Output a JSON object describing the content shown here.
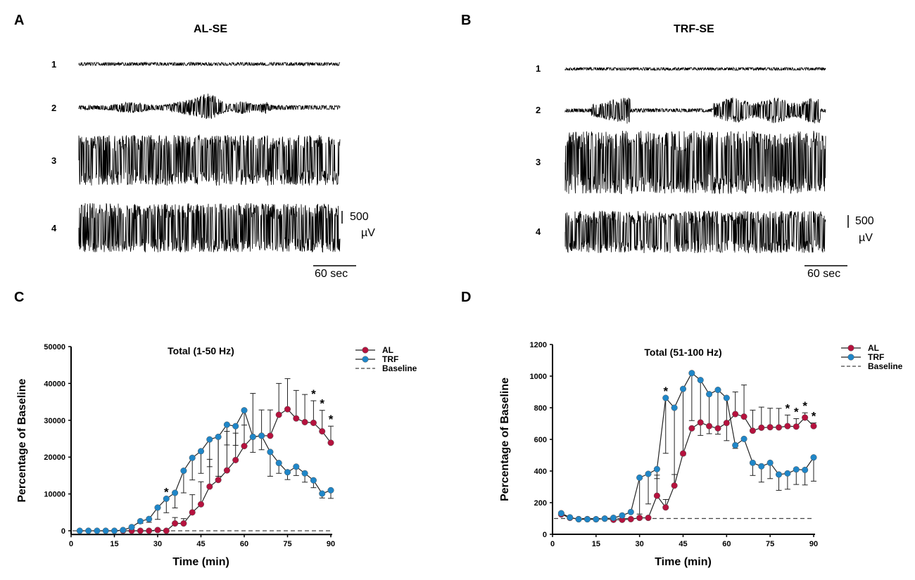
{
  "panels": {
    "A": {
      "letter": "A",
      "title": "AL-SE",
      "traces": [
        "1",
        "2",
        "3",
        "4"
      ],
      "scale_value": "500",
      "scale_unit": "µV",
      "time_scale": "60 sec"
    },
    "B": {
      "letter": "B",
      "title": "TRF-SE",
      "traces": [
        "1",
        "2",
        "3",
        "4"
      ],
      "scale_value": "500",
      "scale_unit": "µV",
      "time_scale": "60 sec"
    },
    "C": {
      "letter": "C"
    },
    "D": {
      "letter": "D"
    }
  },
  "colors": {
    "AL": "#b5123e",
    "TRF": "#1f86c8",
    "line": "#222222"
  },
  "chart_data": [
    {
      "type": "line",
      "title": "Total (1-50 Hz)",
      "xlabel": "Time (min)",
      "ylabel": "Percentage of Baseline",
      "xlim": [
        0,
        90
      ],
      "ylim": [
        -1000,
        50000
      ],
      "xticks": [
        0,
        15,
        30,
        45,
        60,
        75,
        90
      ],
      "yticks": [
        0,
        10000,
        20000,
        30000,
        40000,
        50000
      ],
      "legend_position": "top-right",
      "legend": [
        "AL",
        "TRF",
        "Baseline"
      ],
      "baseline": 0,
      "x": [
        3,
        6,
        9,
        12,
        15,
        18,
        21,
        24,
        27,
        30,
        33,
        36,
        39,
        42,
        45,
        48,
        51,
        54,
        57,
        60,
        63,
        66,
        69,
        72,
        75,
        78,
        81,
        84,
        87,
        90
      ],
      "series": [
        {
          "name": "AL",
          "error_direction": "up",
          "values": [
            null,
            null,
            null,
            null,
            null,
            0,
            0,
            0,
            0,
            200,
            0,
            2000,
            2000,
            5000,
            7200,
            12000,
            13800,
            16400,
            19200,
            23000,
            25500,
            25800,
            25800,
            31500,
            33000,
            30500,
            29500,
            29300,
            27000,
            23900
          ],
          "error": [
            0,
            0,
            0,
            0,
            0,
            0,
            0,
            0,
            0,
            0,
            0,
            1600,
            1300,
            4800,
            6100,
            7400,
            11700,
            10600,
            7300,
            9700,
            11800,
            7000,
            7000,
            8500,
            8300,
            7600,
            7500,
            6000,
            5700,
            4500
          ]
        },
        {
          "name": "TRF",
          "error_direction": "down",
          "values": [
            0,
            0,
            0,
            0,
            0,
            200,
            1000,
            2600,
            3200,
            6300,
            8700,
            10300,
            16300,
            19800,
            21600,
            24800,
            25500,
            28800,
            28400,
            32700,
            25500,
            25800,
            21400,
            18400,
            15900,
            17400,
            15600,
            13700,
            10100,
            11000
          ],
          "error": [
            0,
            0,
            0,
            0,
            0,
            0,
            300,
            600,
            900,
            3200,
            3800,
            4100,
            6000,
            6000,
            6000,
            7400,
            10700,
            5500,
            5200,
            4000,
            4200,
            3800,
            6600,
            2800,
            2000,
            2400,
            2400,
            2000,
            1200,
            2200
          ]
        }
      ],
      "significance_marks": [
        {
          "x": 33,
          "label": "*"
        },
        {
          "x": 84,
          "label": "*"
        },
        {
          "x": 87,
          "label": "*"
        },
        {
          "x": 90,
          "label": "*"
        }
      ]
    },
    {
      "type": "line",
      "title": "Total (51-100 Hz)",
      "xlabel": "Time (min)",
      "ylabel": "Percentage of Baseline",
      "xlim": [
        0,
        90
      ],
      "ylim": [
        0,
        1200
      ],
      "xticks": [
        0,
        15,
        30,
        45,
        60,
        75,
        90
      ],
      "yticks": [
        0,
        200,
        400,
        600,
        800,
        1000,
        1200
      ],
      "legend_position": "top-right",
      "legend": [
        "AL",
        "TRF",
        "Baseline"
      ],
      "baseline": 100,
      "x": [
        3,
        6,
        9,
        12,
        15,
        18,
        21,
        24,
        27,
        30,
        33,
        36,
        39,
        42,
        45,
        48,
        51,
        54,
        57,
        60,
        63,
        66,
        69,
        72,
        75,
        78,
        81,
        84,
        87,
        90
      ],
      "series": [
        {
          "name": "AL",
          "error_direction": "up",
          "values": [
            126,
            104,
            96,
            96,
            95,
            99,
            92,
            92,
            96,
            104,
            104,
            244,
            170,
            308,
            511,
            670,
            707,
            684,
            670,
            704,
            760,
            744,
            655,
            674,
            677,
            676,
            684,
            681,
            738,
            684
          ],
          "error": [
            0,
            0,
            0,
            0,
            0,
            0,
            0,
            0,
            0,
            0,
            0,
            130,
            50,
            70,
            0,
            0,
            0,
            0,
            0,
            0,
            140,
            200,
            130,
            130,
            120,
            120,
            70,
            50,
            30,
            20
          ]
        },
        {
          "name": "TRF",
          "error_direction": "down",
          "values": [
            133,
            107,
            95,
            95,
            95,
            99,
            104,
            119,
            141,
            358,
            382,
            412,
            862,
            800,
            919,
            1019,
            975,
            886,
            913,
            862,
            563,
            603,
            452,
            430,
            452,
            378,
            385,
            410,
            407,
            486
          ],
          "error": [
            0,
            0,
            0,
            0,
            0,
            0,
            0,
            0,
            0,
            230,
            190,
            60,
            350,
            490,
            420,
            300,
            350,
            250,
            280,
            270,
            20,
            0,
            80,
            100,
            100,
            100,
            100,
            95,
            95,
            150
          ]
        }
      ],
      "significance_marks": [
        {
          "x": 39,
          "label": "*"
        },
        {
          "x": 81,
          "label": "*"
        },
        {
          "x": 84,
          "label": "*"
        },
        {
          "x": 87,
          "label": "*"
        },
        {
          "x": 90,
          "label": "*"
        }
      ]
    }
  ]
}
